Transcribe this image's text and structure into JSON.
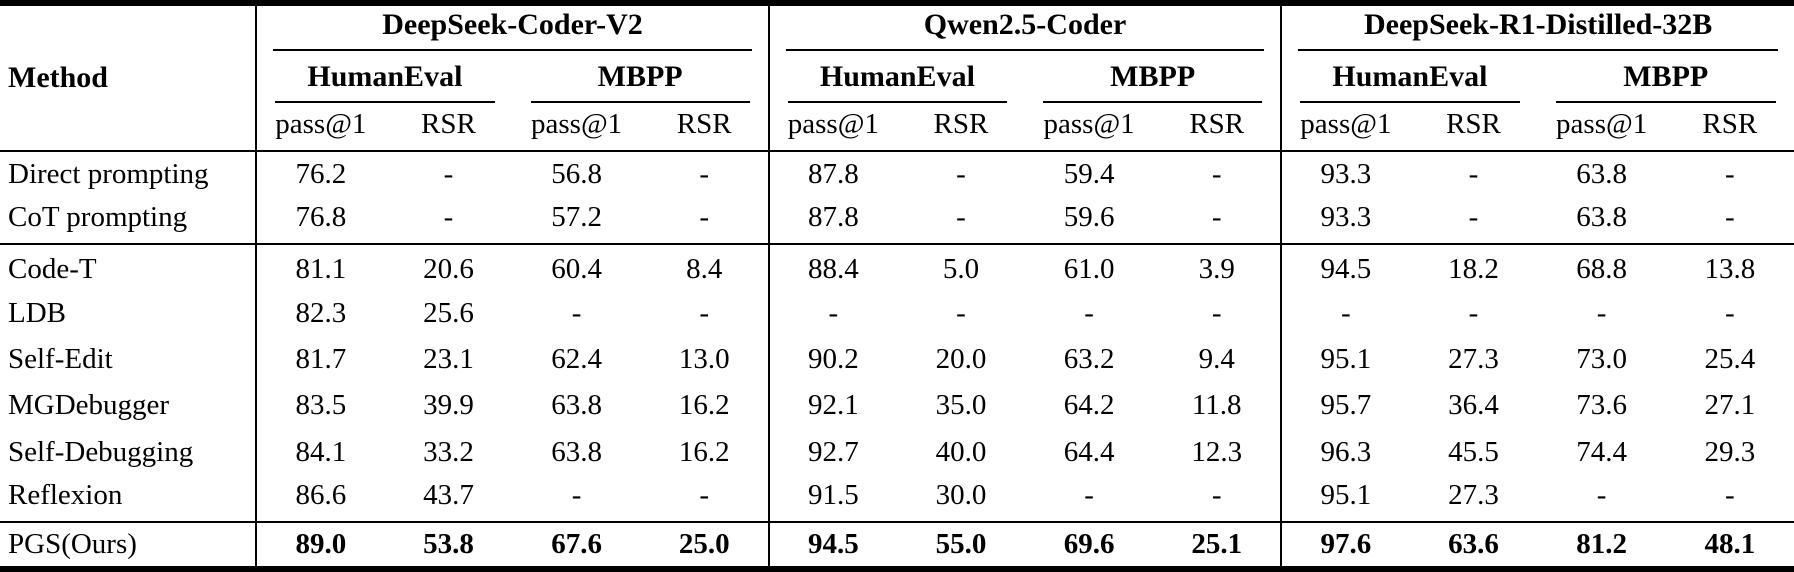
{
  "colors": {
    "text": "#000000",
    "background": "#ffffff",
    "rule": "#000000"
  },
  "table": {
    "method_header": "Method",
    "metric_headers": [
      "pass@1",
      "RSR"
    ],
    "groups": [
      {
        "name": "DeepSeek-Coder-V2",
        "benchmarks": [
          "HumanEval",
          "MBPP"
        ]
      },
      {
        "name": "Qwen2.5-Coder",
        "benchmarks": [
          "HumanEval",
          "MBPP"
        ]
      },
      {
        "name": "DeepSeek-R1-Distilled-32B",
        "benchmarks": [
          "HumanEval",
          "MBPP"
        ]
      }
    ],
    "sections": [
      {
        "name": "prompting-baselines",
        "bold_values": false,
        "rows": [
          {
            "method": "Direct prompting",
            "values": [
              "76.2",
              "-",
              "56.8",
              "-",
              "87.8",
              "-",
              "59.4",
              "-",
              "93.3",
              "-",
              "63.8",
              "-"
            ]
          },
          {
            "method": "CoT prompting",
            "values": [
              "76.8",
              "-",
              "57.2",
              "-",
              "87.8",
              "-",
              "59.6",
              "-",
              "93.3",
              "-",
              "63.8",
              "-"
            ]
          }
        ]
      },
      {
        "name": "iterative-refinement-baselines",
        "bold_values": false,
        "rows": [
          {
            "method": "Code-T",
            "values": [
              "81.1",
              "20.6",
              "60.4",
              "8.4",
              "88.4",
              "5.0",
              "61.0",
              "3.9",
              "94.5",
              "18.2",
              "68.8",
              "13.8"
            ]
          },
          {
            "method": "LDB",
            "values": [
              "82.3",
              "25.6",
              "-",
              "-",
              "-",
              "-",
              "-",
              "-",
              "-",
              "-",
              "-",
              "-"
            ]
          },
          {
            "method": "Self-Edit",
            "values": [
              "81.7",
              "23.1",
              "62.4",
              "13.0",
              "90.2",
              "20.0",
              "63.2",
              "9.4",
              "95.1",
              "27.3",
              "73.0",
              "25.4"
            ]
          },
          {
            "method": "MGDebugger",
            "values": [
              "83.5",
              "39.9",
              "63.8",
              "16.2",
              "92.1",
              "35.0",
              "64.2",
              "11.8",
              "95.7",
              "36.4",
              "73.6",
              "27.1"
            ]
          },
          {
            "method": "Self-Debugging",
            "values": [
              "84.1",
              "33.2",
              "63.8",
              "16.2",
              "92.7",
              "40.0",
              "64.4",
              "12.3",
              "96.3",
              "45.5",
              "74.4",
              "29.3"
            ]
          },
          {
            "method": "Reflexion",
            "values": [
              "86.6",
              "43.7",
              "-",
              "-",
              "91.5",
              "30.0",
              "-",
              "-",
              "95.1",
              "27.3",
              "-",
              "-"
            ]
          }
        ]
      },
      {
        "name": "ours",
        "bold_values": true,
        "rows": [
          {
            "method": "PGS(Ours)",
            "values": [
              "89.0",
              "53.8",
              "67.6",
              "25.0",
              "94.5",
              "55.0",
              "69.6",
              "25.1",
              "97.6",
              "63.6",
              "81.2",
              "48.1"
            ]
          }
        ]
      }
    ]
  }
}
